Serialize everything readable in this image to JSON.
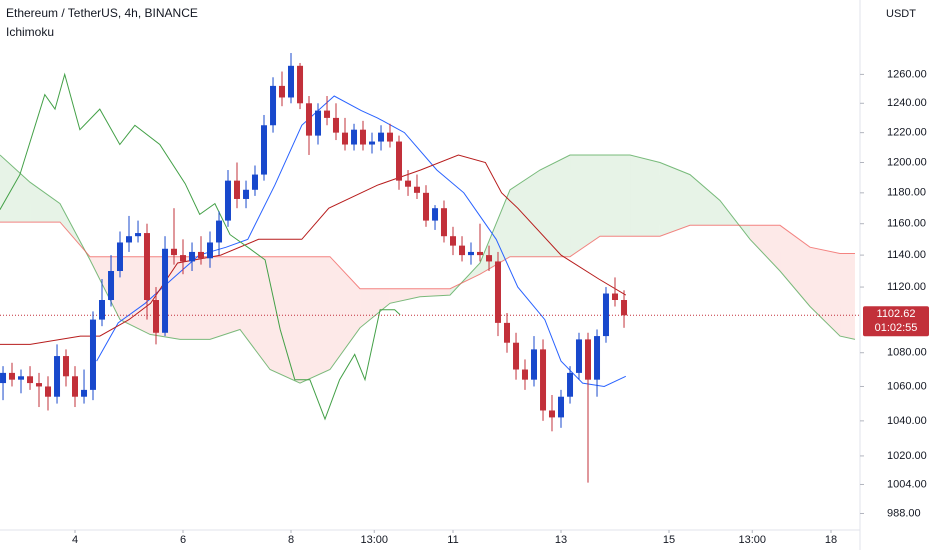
{
  "chart_data": {
    "type": "candlestick",
    "title": "Ethereum / TetherUS, 4h, BINANCE",
    "indicator": "Ichimoku",
    "currency": "USDT",
    "log_scale": true,
    "xlim": [
      2.611,
      18.537
    ],
    "ylim": [
      979,
      1313
    ],
    "xticks": [
      4,
      6,
      8,
      {
        "value": 9.5417,
        "label": "13:00"
      },
      11,
      13,
      15,
      {
        "value": 16.5417,
        "label": "13:00"
      },
      18
    ],
    "yticks": [
      {
        "value": 988,
        "label": "988.00"
      },
      {
        "value": 1004,
        "label": "1004.00"
      },
      {
        "value": 1020,
        "label": "1020.00"
      },
      {
        "value": 1040,
        "label": "1040.00"
      },
      {
        "value": 1060,
        "label": "1060.00"
      },
      {
        "value": 1080,
        "label": "1080.00"
      },
      {
        "value": 1120,
        "label": "1120.00"
      },
      {
        "value": 1140,
        "label": "1140.00"
      },
      {
        "value": 1160,
        "label": "1160.00"
      },
      {
        "value": 1180,
        "label": "1180.00"
      },
      {
        "value": 1200,
        "label": "1200.00"
      },
      {
        "value": 1220,
        "label": "1220.00"
      },
      {
        "value": 1240,
        "label": "1240.00"
      },
      {
        "value": 1260,
        "label": "1260.00"
      }
    ],
    "last_price": 1102.62,
    "countdown": "01:02:55",
    "up_color": "#1848cc",
    "down_color": "#c2303a",
    "candles": {
      "x": [
        2.667,
        2.833,
        3,
        3.167,
        3.333,
        3.5,
        3.667,
        3.833,
        4,
        4.167,
        4.333,
        4.5,
        4.667,
        4.833,
        5,
        5.167,
        5.333,
        5.5,
        5.667,
        5.833,
        6,
        6.167,
        6.333,
        6.5,
        6.667,
        6.833,
        7,
        7.167,
        7.333,
        7.5,
        7.667,
        7.833,
        8,
        8.167,
        8.333,
        8.5,
        8.667,
        8.833,
        9,
        9.167,
        9.333,
        9.5,
        9.667,
        9.833,
        10,
        10.167,
        10.333,
        10.5,
        10.667,
        10.833,
        11,
        11.167,
        11.333,
        11.5,
        11.667,
        11.833,
        12,
        12.167,
        12.333,
        12.5,
        12.667,
        12.833,
        13,
        13.167,
        13.333,
        13.5,
        13.667,
        13.833,
        14,
        14.167
      ],
      "open": [
        1062,
        1068,
        1064,
        1066,
        1062,
        1060,
        1054,
        1078,
        1066,
        1054,
        1058,
        1100,
        1112,
        1130,
        1148,
        1152,
        1154,
        1112,
        1092,
        1144,
        1140,
        1136,
        1142,
        1138,
        1148,
        1162,
        1188,
        1176,
        1182,
        1192,
        1225,
        1252,
        1244,
        1266,
        1240,
        1218,
        1235,
        1230,
        1220,
        1212,
        1222,
        1212,
        1214,
        1220,
        1214,
        1188,
        1184,
        1180,
        1162,
        1170,
        1152,
        1146,
        1140,
        1142,
        1140,
        1136,
        1098,
        1086,
        1070,
        1064,
        1082,
        1046,
        1042,
        1054,
        1068,
        1088,
        1064,
        1090,
        1116,
        1112
      ],
      "high": [
        1072,
        1074,
        1070,
        1072,
        1068,
        1066,
        1085,
        1082,
        1072,
        1070,
        1105,
        1125,
        1140,
        1155,
        1165,
        1162,
        1160,
        1120,
        1152,
        1170,
        1150,
        1148,
        1152,
        1155,
        1168,
        1195,
        1200,
        1188,
        1198,
        1232,
        1258,
        1262,
        1275,
        1268,
        1245,
        1240,
        1245,
        1240,
        1230,
        1226,
        1228,
        1220,
        1225,
        1226,
        1218,
        1195,
        1192,
        1185,
        1172,
        1175,
        1158,
        1152,
        1148,
        1160,
        1146,
        1142,
        1104,
        1092,
        1076,
        1090,
        1088,
        1055,
        1058,
        1072,
        1092,
        1092,
        1094,
        1120,
        1126,
        1118
      ],
      "low": [
        1052,
        1060,
        1056,
        1058,
        1048,
        1046,
        1050,
        1060,
        1048,
        1050,
        1052,
        1096,
        1108,
        1126,
        1142,
        1148,
        1100,
        1085,
        1090,
        1134,
        1128,
        1130,
        1134,
        1132,
        1140,
        1158,
        1170,
        1170,
        1178,
        1188,
        1220,
        1238,
        1240,
        1236,
        1205,
        1212,
        1225,
        1215,
        1208,
        1208,
        1208,
        1206,
        1208,
        1210,
        1182,
        1178,
        1176,
        1158,
        1156,
        1148,
        1140,
        1136,
        1134,
        1136,
        1130,
        1090,
        1080,
        1064,
        1058,
        1060,
        1040,
        1034,
        1036,
        1050,
        1064,
        1005,
        1054,
        1086,
        1108,
        1095
      ],
      "close": [
        1068,
        1064,
        1066,
        1062,
        1060,
        1054,
        1078,
        1066,
        1054,
        1058,
        1100,
        1112,
        1130,
        1148,
        1152,
        1154,
        1112,
        1092,
        1144,
        1140,
        1136,
        1142,
        1138,
        1148,
        1162,
        1188,
        1176,
        1182,
        1192,
        1225,
        1252,
        1244,
        1266,
        1240,
        1218,
        1235,
        1230,
        1220,
        1212,
        1222,
        1212,
        1214,
        1220,
        1214,
        1188,
        1184,
        1180,
        1162,
        1170,
        1152,
        1146,
        1140,
        1142,
        1140,
        1136,
        1098,
        1086,
        1070,
        1064,
        1082,
        1046,
        1042,
        1054,
        1068,
        1088,
        1064,
        1090,
        1116,
        1112,
        1102.62
      ]
    },
    "lines": [
      {
        "color": "#2962ff",
        "x": [
          4.4,
          4.8,
          5.3,
          5.8,
          6.3,
          6.8,
          7.2,
          7.7,
          8.2,
          8.8,
          9.3,
          9.6,
          10.1,
          10.7,
          11.2,
          11.8,
          12.2,
          12.7,
          13,
          13.4,
          13.8,
          14.2
        ],
        "values": [
          1075,
          1098,
          1110,
          1125,
          1140,
          1145,
          1150,
          1185,
          1225,
          1245,
          1235,
          1230,
          1220,
          1195,
          1180,
          1150,
          1120,
          1100,
          1075,
          1062,
          1060,
          1066
        ]
      },
      {
        "color": "#b71c1c",
        "x": [
          2.61,
          3.17,
          4.1,
          4.46,
          5,
          5.4,
          5.9,
          6.7,
          7.4,
          8.2,
          8.7,
          9.6,
          10.4,
          11.1,
          11.6,
          11.9,
          12.2,
          13,
          13.7,
          14.2
        ],
        "values": [
          1085,
          1085,
          1090,
          1090,
          1100,
          1110,
          1135,
          1140,
          1150,
          1150,
          1170,
          1185,
          1195,
          1205,
          1200,
          1180,
          1170,
          1140,
          1125,
          1115
        ]
      },
      {
        "color": "#43a047",
        "x": [
          2.61,
          2.98,
          3.44,
          3.63,
          3.81,
          4.09,
          4.46,
          4.83,
          5.11,
          5.57,
          6.04,
          6.31,
          6.59,
          6.87,
          7.24,
          7.52,
          7.8,
          8.07,
          8.35,
          8.63,
          8.9,
          9.18,
          9.37,
          9.65,
          9.92,
          10.02
        ],
        "values": [
          1169,
          1192,
          1246,
          1236,
          1260,
          1222,
          1236,
          1212,
          1225,
          1212,
          1186,
          1166,
          1173,
          1153,
          1144,
          1137,
          1094,
          1064,
          1064,
          1041,
          1064,
          1079,
          1064,
          1106,
          1106,
          1103
        ]
      }
    ],
    "cloud": {
      "span_a_color": "#43a047",
      "span_b_color": "#ef5350",
      "x": [
        2.611,
        3.167,
        3.722,
        4.278,
        4.833,
        5.389,
        5.944,
        6.5,
        7.056,
        7.611,
        8.167,
        8.722,
        9.278,
        9.833,
        10.389,
        10.944,
        11.5,
        12.056,
        12.611,
        13.167,
        13.722,
        14.278,
        14.833,
        15.389,
        15.944,
        16.5,
        17.056,
        17.611,
        18.167,
        18.444
      ],
      "span_a": [
        1205,
        1187,
        1173,
        1137,
        1100,
        1091,
        1088,
        1088,
        1094,
        1070,
        1062,
        1070,
        1095,
        1110,
        1114,
        1115,
        1135,
        1182,
        1195,
        1205,
        1205,
        1205,
        1200,
        1192,
        1175,
        1150,
        1130,
        1108,
        1090,
        1088
      ],
      "span_b": [
        1161,
        1161,
        1161,
        1139,
        1139,
        1139,
        1139,
        1139,
        1139,
        1139,
        1139,
        1139,
        1119,
        1119,
        1119,
        1119,
        1128,
        1139,
        1139,
        1139,
        1152,
        1152,
        1152,
        1159,
        1159,
        1159,
        1159,
        1145,
        1141,
        1141
      ]
    }
  }
}
